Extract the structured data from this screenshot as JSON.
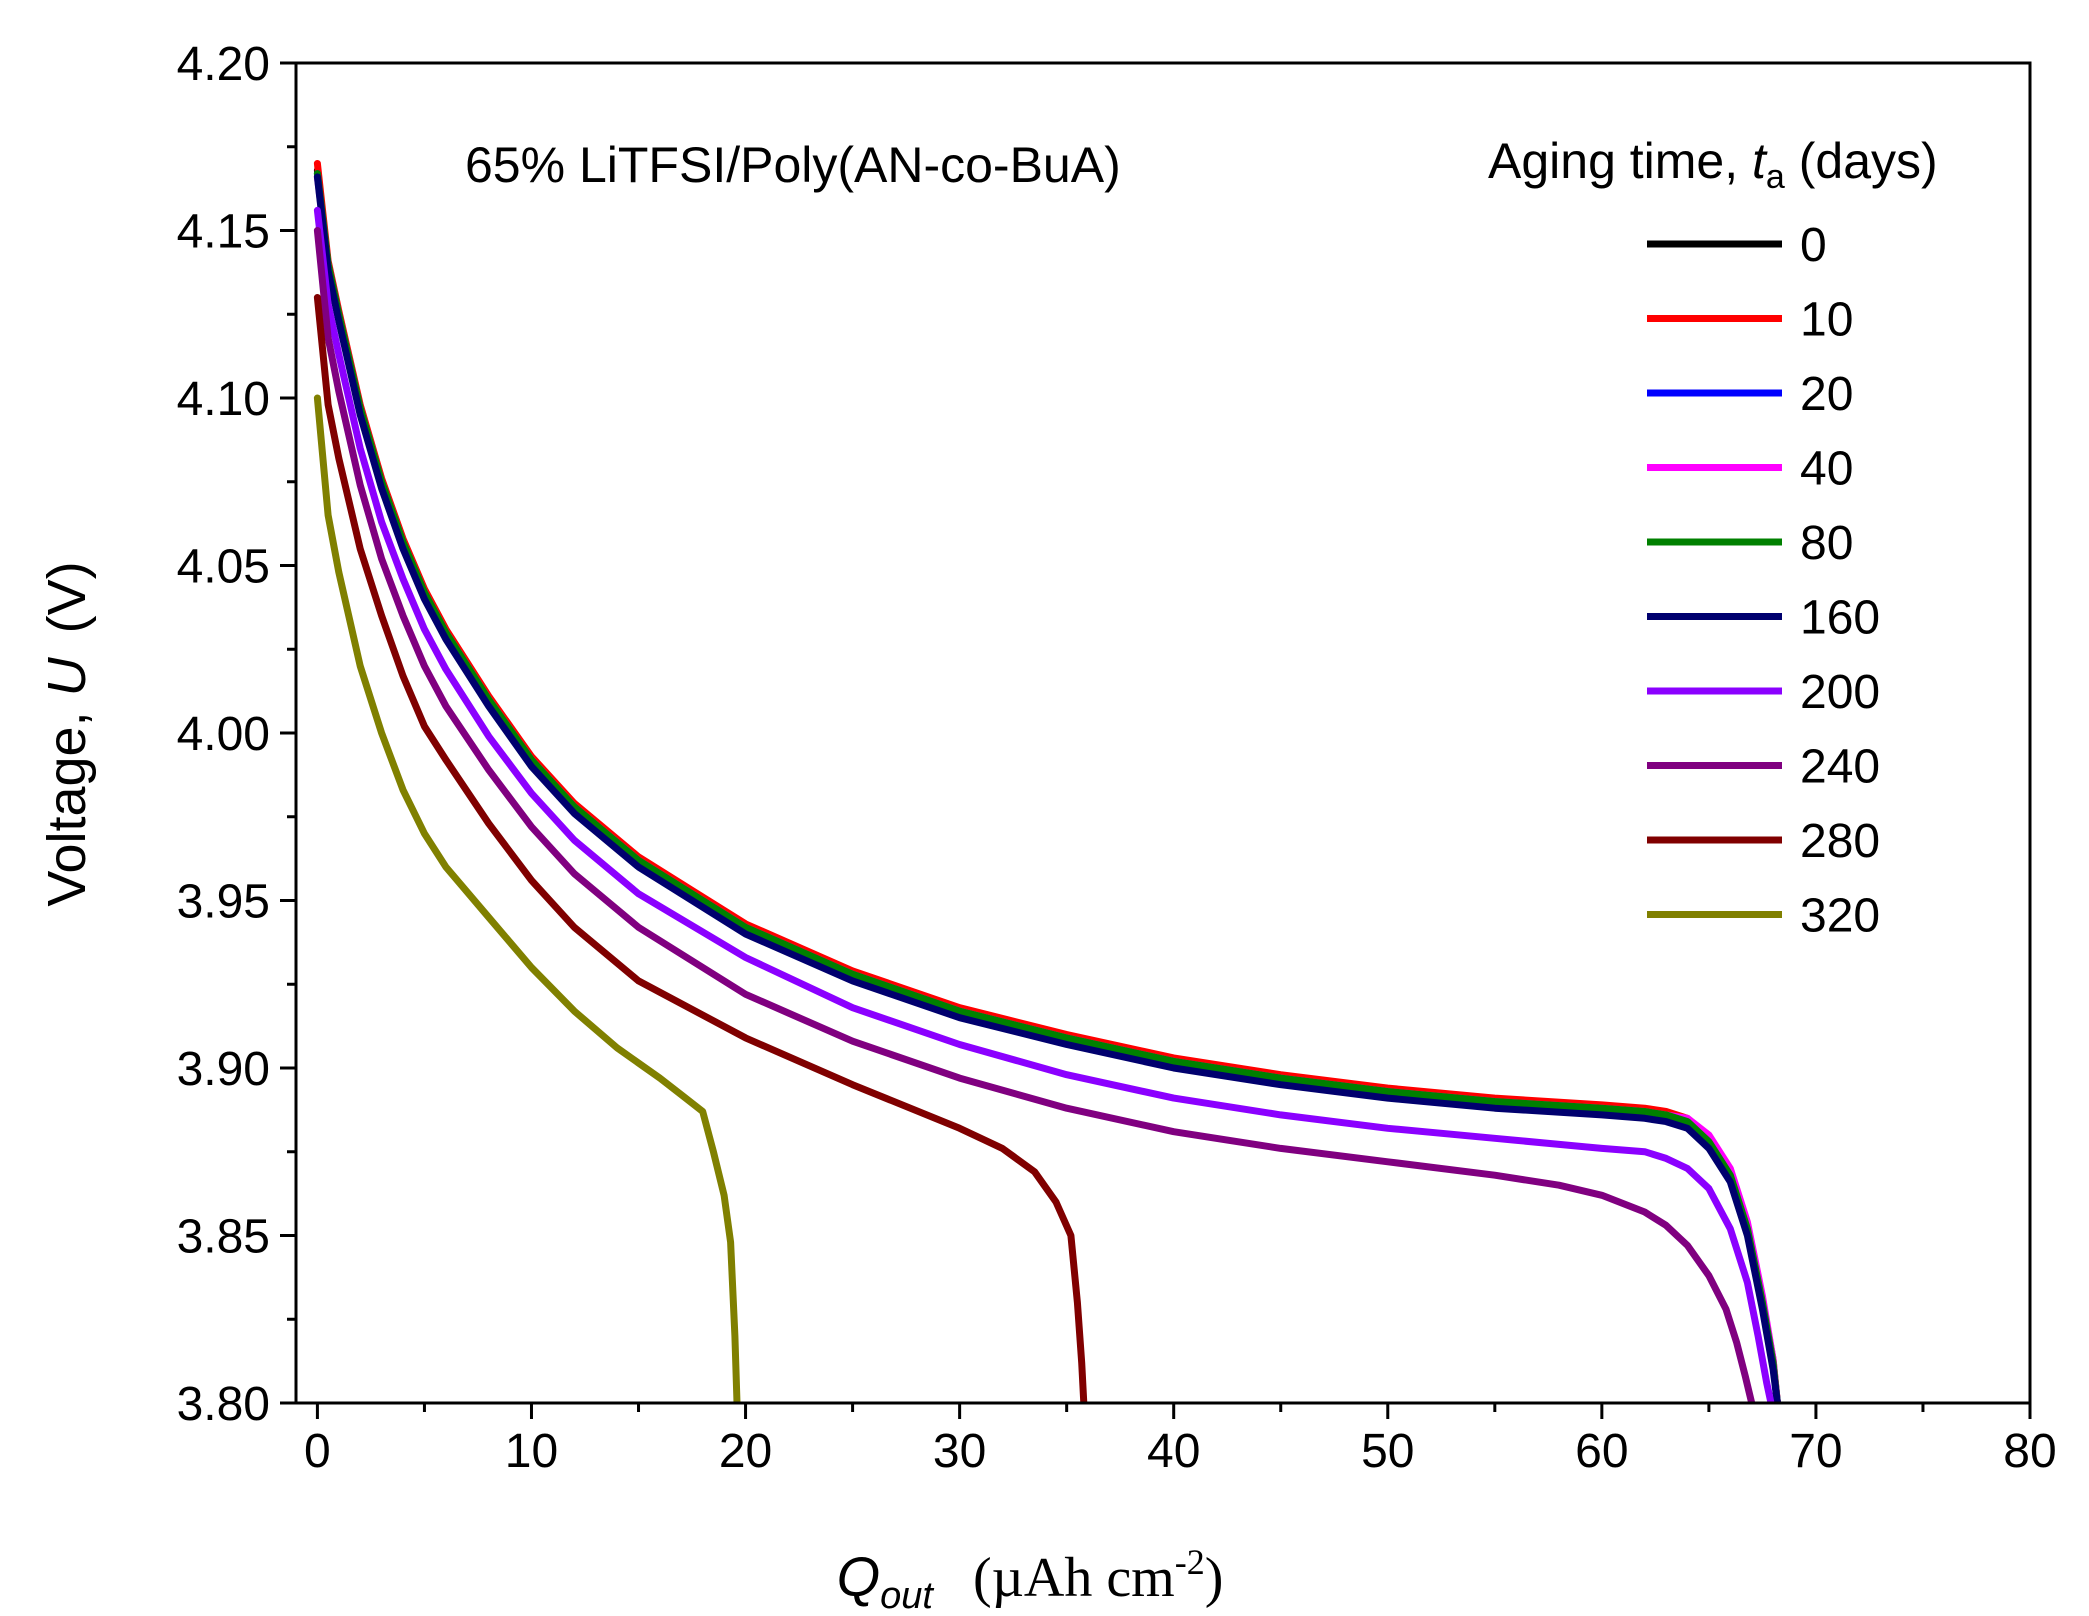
{
  "chart_data": {
    "type": "line",
    "annotation": "65% LiTFSI/Poly(AN-co-BuA)",
    "xlabel": {
      "symbol": "Q",
      "subscript": "out",
      "unit_prefix": "(µAh cm",
      "unit_exp": "-2",
      "unit_suffix": ")"
    },
    "ylabel": {
      "prefix": "Voltage, ",
      "symbol": "U",
      "unit": "(V)"
    },
    "xlim": [
      -1,
      80
    ],
    "ylim": [
      3.8,
      4.2
    ],
    "xticks": [
      "0",
      "10",
      "20",
      "30",
      "40",
      "50",
      "60",
      "70",
      "80"
    ],
    "yticks": [
      "3.80",
      "3.85",
      "3.90",
      "3.95",
      "4.00",
      "4.05",
      "4.10",
      "4.15",
      "4.20"
    ],
    "legend": {
      "title_prefix": "Aging time, ",
      "title_symbol": "t",
      "title_sub": "a",
      "title_suffix": " (days)",
      "position": "top-right"
    },
    "series": [
      {
        "name": "0",
        "color": "#000000",
        "x": [
          0,
          0.5,
          1,
          2,
          3,
          4,
          5,
          6,
          8,
          10,
          12,
          15,
          20,
          25,
          30,
          35,
          40,
          45,
          50,
          55,
          60,
          62,
          63,
          64,
          65,
          66,
          66.8,
          67.5,
          68,
          68.2
        ],
        "y": [
          4.168,
          4.14,
          4.125,
          4.097,
          4.075,
          4.057,
          4.042,
          4.03,
          4.01,
          3.992,
          3.978,
          3.962,
          3.942,
          3.928,
          3.917,
          3.909,
          3.902,
          3.897,
          3.893,
          3.89,
          3.888,
          3.887,
          3.886,
          3.884,
          3.878,
          3.868,
          3.852,
          3.83,
          3.812,
          3.8
        ]
      },
      {
        "name": "10",
        "color": "#ff0000",
        "x": [
          0,
          0.5,
          1,
          2,
          3,
          4,
          5,
          6,
          8,
          10,
          12,
          15,
          20,
          25,
          30,
          35,
          40,
          45,
          50,
          55,
          60,
          62,
          63,
          64,
          65,
          66,
          66.8,
          67.5,
          68,
          68.2
        ],
        "y": [
          4.17,
          4.141,
          4.126,
          4.098,
          4.076,
          4.058,
          4.043,
          4.031,
          4.011,
          3.993,
          3.979,
          3.963,
          3.943,
          3.929,
          3.918,
          3.91,
          3.903,
          3.898,
          3.894,
          3.891,
          3.889,
          3.888,
          3.887,
          3.885,
          3.879,
          3.869,
          3.853,
          3.831,
          3.813,
          3.8
        ]
      },
      {
        "name": "20",
        "color": "#0000ff",
        "x": [
          0,
          0.5,
          1,
          2,
          3,
          4,
          5,
          6,
          8,
          10,
          12,
          15,
          20,
          25,
          30,
          35,
          40,
          45,
          50,
          55,
          60,
          62,
          63,
          64,
          65,
          66,
          66.8,
          67.5,
          68,
          68.2
        ],
        "y": [
          4.167,
          4.139,
          4.124,
          4.096,
          4.074,
          4.056,
          4.041,
          4.029,
          4.009,
          3.991,
          3.977,
          3.961,
          3.941,
          3.927,
          3.916,
          3.908,
          3.901,
          3.896,
          3.892,
          3.889,
          3.887,
          3.886,
          3.885,
          3.883,
          3.877,
          3.867,
          3.851,
          3.829,
          3.811,
          3.8
        ]
      },
      {
        "name": "40",
        "color": "#ff00ff",
        "x": [
          0,
          0.5,
          1,
          2,
          3,
          4,
          5,
          6,
          8,
          10,
          12,
          15,
          20,
          25,
          30,
          35,
          40,
          45,
          50,
          55,
          60,
          62,
          63,
          64,
          65,
          66,
          66.8,
          67.5,
          68,
          68.2
        ],
        "y": [
          4.166,
          4.14,
          4.125,
          4.097,
          4.075,
          4.057,
          4.042,
          4.03,
          4.01,
          3.992,
          3.978,
          3.962,
          3.942,
          3.928,
          3.917,
          3.909,
          3.902,
          3.897,
          3.893,
          3.89,
          3.888,
          3.887,
          3.886,
          3.885,
          3.88,
          3.87,
          3.854,
          3.832,
          3.813,
          3.8
        ]
      },
      {
        "name": "80",
        "color": "#008000",
        "x": [
          0,
          0.5,
          1,
          2,
          3,
          4,
          5,
          6,
          8,
          10,
          12,
          15,
          20,
          25,
          30,
          35,
          40,
          45,
          50,
          55,
          60,
          62,
          63,
          64,
          65,
          66,
          66.8,
          67.5,
          68,
          68.2
        ],
        "y": [
          4.167,
          4.14,
          4.125,
          4.097,
          4.075,
          4.057,
          4.042,
          4.03,
          4.01,
          3.992,
          3.978,
          3.962,
          3.942,
          3.928,
          3.917,
          3.909,
          3.902,
          3.897,
          3.893,
          3.89,
          3.888,
          3.887,
          3.886,
          3.884,
          3.878,
          3.868,
          3.852,
          3.83,
          3.812,
          3.8
        ]
      },
      {
        "name": "160",
        "color": "#00006e",
        "x": [
          0,
          0.5,
          1,
          2,
          3,
          4,
          5,
          6,
          8,
          10,
          12,
          15,
          20,
          25,
          30,
          35,
          40,
          45,
          50,
          55,
          60,
          62,
          63,
          64,
          65,
          66,
          66.8,
          67.5,
          68,
          68.2
        ],
        "y": [
          4.166,
          4.138,
          4.123,
          4.095,
          4.073,
          4.055,
          4.04,
          4.028,
          4.008,
          3.99,
          3.976,
          3.96,
          3.94,
          3.926,
          3.915,
          3.907,
          3.9,
          3.895,
          3.891,
          3.888,
          3.886,
          3.885,
          3.884,
          3.882,
          3.876,
          3.866,
          3.85,
          3.828,
          3.81,
          3.8
        ]
      },
      {
        "name": "200",
        "color": "#8b00ff",
        "x": [
          0,
          0.5,
          1,
          2,
          3,
          4,
          5,
          6,
          8,
          10,
          12,
          15,
          20,
          25,
          30,
          35,
          40,
          45,
          50,
          55,
          60,
          62,
          63,
          64,
          65,
          66,
          66.8,
          67.3,
          67.7,
          67.9
        ],
        "y": [
          4.156,
          4.128,
          4.113,
          4.085,
          4.063,
          4.046,
          4.031,
          4.019,
          3.999,
          3.982,
          3.968,
          3.952,
          3.933,
          3.918,
          3.907,
          3.898,
          3.891,
          3.886,
          3.882,
          3.879,
          3.876,
          3.875,
          3.873,
          3.87,
          3.864,
          3.852,
          3.836,
          3.82,
          3.806,
          3.8
        ]
      },
      {
        "name": "240",
        "color": "#800080",
        "x": [
          0,
          0.5,
          1,
          2,
          3,
          4,
          5,
          6,
          8,
          10,
          12,
          15,
          20,
          25,
          30,
          35,
          40,
          45,
          50,
          55,
          58,
          60,
          62,
          63,
          64,
          65,
          65.8,
          66.3,
          66.7,
          67.0
        ],
        "y": [
          4.15,
          4.118,
          4.102,
          4.074,
          4.052,
          4.035,
          4.02,
          4.008,
          3.989,
          3.972,
          3.958,
          3.942,
          3.922,
          3.908,
          3.897,
          3.888,
          3.881,
          3.876,
          3.872,
          3.868,
          3.865,
          3.862,
          3.857,
          3.853,
          3.847,
          3.838,
          3.828,
          3.818,
          3.808,
          3.8
        ]
      },
      {
        "name": "280",
        "color": "#800000",
        "x": [
          0,
          0.5,
          1,
          2,
          3,
          4,
          5,
          6,
          8,
          10,
          12,
          15,
          20,
          25,
          30,
          32,
          33.5,
          34.5,
          35.2,
          35.5,
          35.7,
          35.8
        ],
        "y": [
          4.13,
          4.098,
          4.082,
          4.055,
          4.035,
          4.017,
          4.002,
          3.992,
          3.973,
          3.956,
          3.942,
          3.926,
          3.909,
          3.895,
          3.882,
          3.876,
          3.869,
          3.86,
          3.85,
          3.83,
          3.812,
          3.8
        ]
      },
      {
        "name": "320",
        "color": "#808000",
        "x": [
          0,
          0.5,
          1,
          2,
          3,
          4,
          5,
          6,
          8,
          10,
          12,
          14,
          16,
          17,
          18,
          18.5,
          19,
          19.3,
          19.5,
          19.6
        ],
        "y": [
          4.1,
          4.065,
          4.048,
          4.02,
          4.0,
          3.983,
          3.97,
          3.96,
          3.945,
          3.93,
          3.917,
          3.906,
          3.897,
          3.892,
          3.887,
          3.875,
          3.862,
          3.848,
          3.82,
          3.8
        ]
      }
    ]
  }
}
